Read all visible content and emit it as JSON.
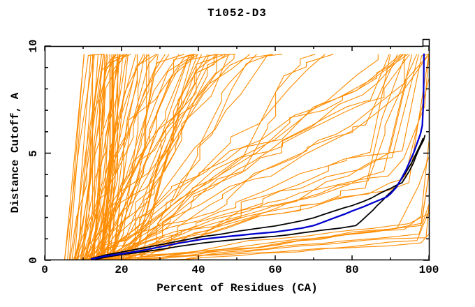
{
  "page": {
    "background": "#FFFFFF"
  },
  "chart_data": {
    "type": "line",
    "title": "T1052-D3",
    "xlabel": "Percent of Residues (CA)",
    "ylabel": "Distance Cutoff, A",
    "xlim": [
      0,
      100
    ],
    "ylim": [
      0,
      10
    ],
    "x_major_ticks": [
      0,
      20,
      40,
      60,
      80,
      100
    ],
    "x_minor_tick_step": 10,
    "y_major_ticks": [
      0,
      5,
      10
    ],
    "y_minor_tick_step": 1,
    "grid": false,
    "legend": "none",
    "axis_color": "#000000",
    "frame": true,
    "curve_top_limit": 9.62,
    "series": [
      {
        "name": "highlight-model-blue",
        "color": "#0000CD",
        "stroke_width": 2.3,
        "points": [
          [
            12,
            0.05
          ],
          [
            16,
            0.2
          ],
          [
            20,
            0.3
          ],
          [
            25,
            0.45
          ],
          [
            30,
            0.62
          ],
          [
            35,
            0.8
          ],
          [
            41,
            0.98
          ],
          [
            46,
            1.08
          ],
          [
            50,
            1.15
          ],
          [
            55,
            1.24
          ],
          [
            60,
            1.32
          ],
          [
            64,
            1.42
          ],
          [
            67,
            1.5
          ],
          [
            70,
            1.62
          ],
          [
            72,
            1.75
          ],
          [
            75,
            1.95
          ],
          [
            78,
            2.15
          ],
          [
            80,
            2.3
          ],
          [
            83,
            2.5
          ],
          [
            85,
            2.65
          ],
          [
            87,
            2.8
          ],
          [
            89,
            2.95
          ],
          [
            90,
            3.1
          ],
          [
            91.5,
            3.4
          ],
          [
            92.5,
            3.7
          ],
          [
            94,
            4.2
          ],
          [
            95,
            4.6
          ],
          [
            96,
            5.0
          ],
          [
            97,
            5.5
          ],
          [
            97.8,
            5.9
          ],
          [
            98.3,
            6.3
          ],
          [
            98.6,
            7.5
          ],
          [
            98.7,
            9.65
          ]
        ]
      },
      {
        "name": "highlight-reference-black-upper",
        "color": "#000000",
        "stroke_width": 1.8,
        "points": [
          [
            12,
            0.07
          ],
          [
            16,
            0.25
          ],
          [
            20,
            0.38
          ],
          [
            25,
            0.55
          ],
          [
            30,
            0.72
          ],
          [
            35,
            0.9
          ],
          [
            41,
            1.1
          ],
          [
            46,
            1.22
          ],
          [
            50,
            1.35
          ],
          [
            55,
            1.48
          ],
          [
            60,
            1.6
          ],
          [
            64,
            1.74
          ],
          [
            67,
            1.85
          ],
          [
            70,
            1.98
          ],
          [
            72,
            2.1
          ],
          [
            75,
            2.28
          ],
          [
            78,
            2.45
          ],
          [
            80,
            2.55
          ],
          [
            83,
            2.75
          ],
          [
            85,
            2.9
          ],
          [
            87,
            3.1
          ],
          [
            89,
            3.28
          ],
          [
            90,
            3.35
          ],
          [
            91.5,
            3.5
          ],
          [
            93,
            3.62
          ],
          [
            94,
            3.9
          ],
          [
            95,
            4.2
          ],
          [
            96,
            4.55
          ],
          [
            96.5,
            4.8
          ],
          [
            97.2,
            5.1
          ],
          [
            98,
            5.4
          ],
          [
            98.6,
            5.6
          ],
          [
            99,
            5.85
          ]
        ]
      },
      {
        "name": "highlight-reference-black-lower",
        "color": "#000000",
        "stroke_width": 1.8,
        "points": [
          [
            13,
            0.04
          ],
          [
            17,
            0.18
          ],
          [
            20,
            0.26
          ],
          [
            25,
            0.38
          ],
          [
            30,
            0.5
          ],
          [
            35,
            0.65
          ],
          [
            41,
            0.8
          ],
          [
            46,
            0.9
          ],
          [
            50,
            0.97
          ],
          [
            55,
            1.05
          ],
          [
            60,
            1.12
          ],
          [
            64,
            1.2
          ],
          [
            67,
            1.28
          ],
          [
            70,
            1.35
          ],
          [
            72,
            1.4
          ],
          [
            75,
            1.46
          ],
          [
            77,
            1.5
          ],
          [
            79,
            1.56
          ],
          [
            81,
            1.62
          ],
          [
            82.5,
            1.85
          ],
          [
            84,
            2.1
          ],
          [
            85.5,
            2.35
          ],
          [
            86.5,
            2.55
          ],
          [
            88,
            2.8
          ],
          [
            89,
            3.0
          ],
          [
            90.5,
            3.25
          ],
          [
            91.5,
            3.45
          ],
          [
            92.5,
            3.7
          ],
          [
            93.5,
            3.95
          ],
          [
            94.5,
            4.25
          ],
          [
            95.5,
            4.55
          ],
          [
            96.3,
            4.85
          ],
          [
            97,
            5.1
          ],
          [
            97.8,
            5.4
          ],
          [
            98.5,
            5.7
          ]
        ]
      }
    ],
    "background_ensemble": {
      "name": "all-models-orange",
      "color": "#FF8C00",
      "stroke_width": 1.1,
      "seed": 10523,
      "y_top": 9.62,
      "classes": [
        {
          "n": 44,
          "x_start": [
            5,
            18
          ],
          "slope": [
            0.5,
            2.2
          ],
          "seg_dx": [
            1.5,
            6
          ],
          "jump_prob": 0.42,
          "jump_size": [
            0.4,
            1.7
          ]
        },
        {
          "n": 34,
          "x_start": [
            7,
            26
          ],
          "slope": [
            0.13,
            0.5
          ],
          "seg_dx": [
            2,
            8
          ],
          "jump_prob": 0.3,
          "jump_size": [
            0.3,
            1.0
          ]
        },
        {
          "n": 20,
          "x_start": [
            9,
            21
          ],
          "slope": [
            0.035,
            0.11
          ],
          "seg_dx": [
            3,
            9
          ],
          "jump_prob": 0.12,
          "jump_size": [
            0.15,
            0.5
          ],
          "knee_x": [
            80,
            93
          ],
          "knee_mult": [
            6,
            20
          ],
          "end_spike_prob": 0.55,
          "end_spike_y": [
            5,
            9.62
          ]
        },
        {
          "n": 9,
          "x_start": [
            10,
            30
          ],
          "slope": [
            0.009,
            0.024
          ],
          "seg_dx": [
            4,
            11
          ],
          "jump_prob": 0,
          "jump_size": [
            0,
            0
          ],
          "knee_x": [
            88,
            96
          ],
          "knee_mult": [
            8,
            22
          ]
        }
      ]
    }
  }
}
